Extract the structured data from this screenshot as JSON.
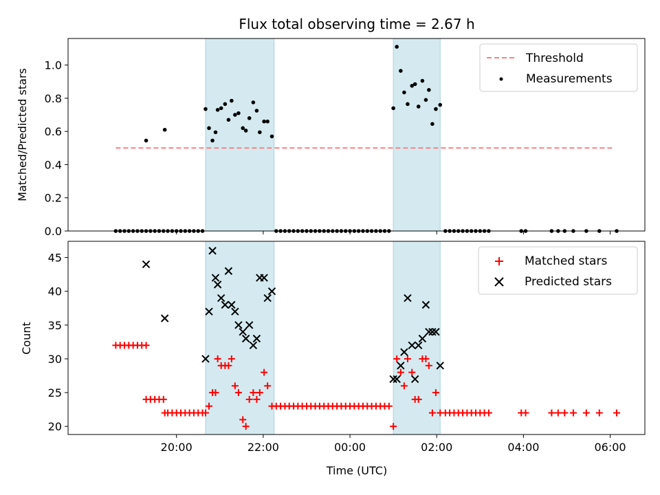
{
  "chart_data": [
    {
      "type": "scatter",
      "title": "Flux total observing time = 2.67 h",
      "ylabel": "Matched/Predicted stars",
      "xlabel": "",
      "x_unit": "hours since 18:00 UTC",
      "xlim": [
        -0.5,
        12.8
      ],
      "ylim": [
        0,
        1.16
      ],
      "yticks": [
        0.0,
        0.2,
        0.4,
        0.6,
        0.8,
        1.0
      ],
      "ytick_labels": [
        "0.0",
        "0.2",
        "0.4",
        "0.6",
        "0.8",
        "1.0"
      ],
      "xticks": [
        2,
        4,
        6,
        8,
        10,
        12
      ],
      "spans": [
        [
          2.67,
          4.25
        ],
        [
          7.0,
          8.08
        ]
      ],
      "span_color": "#d4eaf0",
      "legend": {
        "placement": "top-right",
        "entries": [
          "Threshold",
          "Measurements"
        ]
      },
      "threshold": {
        "name": "Threshold",
        "y": 0.5,
        "x_start": 0.6,
        "x_end": 12.1,
        "color": "#ff7f7f"
      },
      "measurements": {
        "name": "Measurements",
        "color": "#000000",
        "points": [
          [
            0.6,
            0
          ],
          [
            0.7,
            0
          ],
          [
            0.8,
            0
          ],
          [
            0.9,
            0
          ],
          [
            1.0,
            0
          ],
          [
            1.1,
            0
          ],
          [
            1.2,
            0
          ],
          [
            1.3,
            0
          ],
          [
            1.3,
            0.545
          ],
          [
            1.4,
            0
          ],
          [
            1.5,
            0
          ],
          [
            1.6,
            0
          ],
          [
            1.7,
            0
          ],
          [
            1.73,
            0.61
          ],
          [
            1.8,
            0
          ],
          [
            1.9,
            0
          ],
          [
            2.0,
            0
          ],
          [
            2.1,
            0
          ],
          [
            2.2,
            0
          ],
          [
            2.3,
            0
          ],
          [
            2.4,
            0
          ],
          [
            2.5,
            0
          ],
          [
            2.6,
            0
          ],
          [
            2.67,
            0.735
          ],
          [
            2.75,
            0.62
          ],
          [
            2.83,
            0.545
          ],
          [
            2.9,
            0.595
          ],
          [
            2.95,
            0.73
          ],
          [
            3.03,
            0.74
          ],
          [
            3.12,
            0.765
          ],
          [
            3.2,
            0.67
          ],
          [
            3.27,
            0.785
          ],
          [
            3.35,
            0.7
          ],
          [
            3.43,
            0.71
          ],
          [
            3.53,
            0.62
          ],
          [
            3.6,
            0.605
          ],
          [
            3.68,
            0.68
          ],
          [
            3.77,
            0.775
          ],
          [
            3.85,
            0.725
          ],
          [
            3.92,
            0.595
          ],
          [
            4.02,
            0.66
          ],
          [
            4.1,
            0.66
          ],
          [
            4.2,
            0.57
          ],
          [
            4.3,
            0
          ],
          [
            4.4,
            0
          ],
          [
            4.5,
            0
          ],
          [
            4.6,
            0
          ],
          [
            4.7,
            0
          ],
          [
            4.8,
            0
          ],
          [
            4.9,
            0
          ],
          [
            5.0,
            0
          ],
          [
            5.1,
            0
          ],
          [
            5.2,
            0
          ],
          [
            5.3,
            0
          ],
          [
            5.4,
            0
          ],
          [
            5.5,
            0
          ],
          [
            5.6,
            0
          ],
          [
            5.7,
            0
          ],
          [
            5.8,
            0
          ],
          [
            5.9,
            0
          ],
          [
            6.0,
            0
          ],
          [
            6.1,
            0
          ],
          [
            6.2,
            0
          ],
          [
            6.3,
            0
          ],
          [
            6.4,
            0
          ],
          [
            6.5,
            0
          ],
          [
            6.6,
            0
          ],
          [
            6.7,
            0
          ],
          [
            6.8,
            0
          ],
          [
            6.9,
            0
          ],
          [
            7.0,
            0.74
          ],
          [
            7.08,
            1.11
          ],
          [
            7.17,
            0.965
          ],
          [
            7.25,
            0.835
          ],
          [
            7.33,
            0.765
          ],
          [
            7.43,
            0.875
          ],
          [
            7.5,
            0.885
          ],
          [
            7.58,
            0.75
          ],
          [
            7.67,
            0.905
          ],
          [
            7.75,
            0.79
          ],
          [
            7.82,
            0.85
          ],
          [
            7.9,
            0.645
          ],
          [
            7.98,
            0.735
          ],
          [
            8.08,
            0.76
          ],
          [
            8.2,
            0
          ],
          [
            8.3,
            0
          ],
          [
            8.4,
            0
          ],
          [
            8.5,
            0
          ],
          [
            8.6,
            0
          ],
          [
            8.7,
            0
          ],
          [
            8.8,
            0
          ],
          [
            8.9,
            0
          ],
          [
            9.0,
            0
          ],
          [
            9.1,
            0
          ],
          [
            9.2,
            0
          ],
          [
            9.95,
            0
          ],
          [
            10.05,
            0
          ],
          [
            10.65,
            0
          ],
          [
            10.8,
            0
          ],
          [
            10.95,
            0
          ],
          [
            11.15,
            0
          ],
          [
            11.45,
            0
          ],
          [
            11.75,
            0
          ],
          [
            12.15,
            0
          ]
        ]
      }
    },
    {
      "type": "scatter",
      "title": "",
      "ylabel": "Count",
      "xlabel": "Time (UTC)",
      "x_unit": "hours since 18:00 UTC",
      "xlim": [
        -0.5,
        12.8
      ],
      "ylim": [
        18.8,
        47.4
      ],
      "yticks": [
        20,
        25,
        30,
        35,
        40,
        45
      ],
      "ytick_labels": [
        "20",
        "25",
        "30",
        "35",
        "40",
        "45"
      ],
      "xticks": [
        2,
        4,
        6,
        8,
        10,
        12
      ],
      "xtick_labels": [
        "20:00",
        "22:00",
        "00:00",
        "02:00",
        "04:00",
        "06:00"
      ],
      "spans": [
        [
          2.67,
          4.25
        ],
        [
          7.0,
          8.08
        ]
      ],
      "span_color": "#d4eaf0",
      "legend": {
        "placement": "top-right",
        "entries": [
          "Matched stars",
          "Predicted stars"
        ]
      },
      "series": [
        {
          "name": "Matched stars",
          "marker": "plus",
          "color": "#ff0000",
          "points": [
            [
              0.6,
              32
            ],
            [
              0.7,
              32
            ],
            [
              0.8,
              32
            ],
            [
              0.9,
              32
            ],
            [
              1.0,
              32
            ],
            [
              1.1,
              32
            ],
            [
              1.2,
              32
            ],
            [
              1.3,
              32
            ],
            [
              1.3,
              24
            ],
            [
              1.4,
              24
            ],
            [
              1.5,
              24
            ],
            [
              1.6,
              24
            ],
            [
              1.7,
              24
            ],
            [
              1.73,
              22
            ],
            [
              1.8,
              22
            ],
            [
              1.9,
              22
            ],
            [
              2.0,
              22
            ],
            [
              2.1,
              22
            ],
            [
              2.2,
              22
            ],
            [
              2.3,
              22
            ],
            [
              2.4,
              22
            ],
            [
              2.5,
              22
            ],
            [
              2.6,
              22
            ],
            [
              2.67,
              22
            ],
            [
              2.75,
              23
            ],
            [
              2.83,
              25
            ],
            [
              2.9,
              25
            ],
            [
              2.95,
              30
            ],
            [
              3.03,
              29
            ],
            [
              3.12,
              29
            ],
            [
              3.2,
              29
            ],
            [
              3.27,
              30
            ],
            [
              3.35,
              26
            ],
            [
              3.43,
              25
            ],
            [
              3.53,
              21
            ],
            [
              3.6,
              20
            ],
            [
              3.68,
              24
            ],
            [
              3.77,
              25
            ],
            [
              3.85,
              24
            ],
            [
              3.92,
              25
            ],
            [
              4.02,
              28
            ],
            [
              4.1,
              26
            ],
            [
              4.2,
              23
            ],
            [
              4.3,
              23
            ],
            [
              4.4,
              23
            ],
            [
              4.5,
              23
            ],
            [
              4.6,
              23
            ],
            [
              4.7,
              23
            ],
            [
              4.8,
              23
            ],
            [
              4.9,
              23
            ],
            [
              5.0,
              23
            ],
            [
              5.1,
              23
            ],
            [
              5.2,
              23
            ],
            [
              5.3,
              23
            ],
            [
              5.4,
              23
            ],
            [
              5.5,
              23
            ],
            [
              5.6,
              23
            ],
            [
              5.7,
              23
            ],
            [
              5.8,
              23
            ],
            [
              5.9,
              23
            ],
            [
              6.0,
              23
            ],
            [
              6.1,
              23
            ],
            [
              6.2,
              23
            ],
            [
              6.3,
              23
            ],
            [
              6.4,
              23
            ],
            [
              6.5,
              23
            ],
            [
              6.6,
              23
            ],
            [
              6.7,
              23
            ],
            [
              6.8,
              23
            ],
            [
              6.9,
              23
            ],
            [
              7.0,
              20
            ],
            [
              7.08,
              30
            ],
            [
              7.17,
              28
            ],
            [
              7.25,
              26
            ],
            [
              7.33,
              30
            ],
            [
              7.43,
              28
            ],
            [
              7.5,
              24
            ],
            [
              7.58,
              24
            ],
            [
              7.67,
              30
            ],
            [
              7.75,
              30
            ],
            [
              7.82,
              29
            ],
            [
              7.9,
              22
            ],
            [
              7.98,
              25
            ],
            [
              8.08,
              22
            ],
            [
              8.2,
              22
            ],
            [
              8.3,
              22
            ],
            [
              8.4,
              22
            ],
            [
              8.5,
              22
            ],
            [
              8.6,
              22
            ],
            [
              8.7,
              22
            ],
            [
              8.8,
              22
            ],
            [
              8.9,
              22
            ],
            [
              9.0,
              22
            ],
            [
              9.1,
              22
            ],
            [
              9.2,
              22
            ],
            [
              9.95,
              22
            ],
            [
              10.05,
              22
            ],
            [
              10.65,
              22
            ],
            [
              10.8,
              22
            ],
            [
              10.95,
              22
            ],
            [
              11.15,
              22
            ],
            [
              11.45,
              22
            ],
            [
              11.75,
              22
            ],
            [
              12.15,
              22
            ]
          ]
        },
        {
          "name": "Predicted stars",
          "marker": "x",
          "color": "#000000",
          "points": [
            [
              1.3,
              44
            ],
            [
              1.73,
              36
            ],
            [
              2.67,
              30
            ],
            [
              2.75,
              37
            ],
            [
              2.83,
              46
            ],
            [
              2.9,
              42
            ],
            [
              2.95,
              41
            ],
            [
              3.03,
              39
            ],
            [
              3.12,
              38
            ],
            [
              3.2,
              43
            ],
            [
              3.27,
              38
            ],
            [
              3.35,
              37
            ],
            [
              3.43,
              35
            ],
            [
              3.53,
              34
            ],
            [
              3.6,
              33
            ],
            [
              3.68,
              35
            ],
            [
              3.77,
              32
            ],
            [
              3.85,
              33
            ],
            [
              3.92,
              42
            ],
            [
              4.02,
              42
            ],
            [
              4.1,
              39
            ],
            [
              4.2,
              40
            ],
            [
              7.0,
              27
            ],
            [
              7.08,
              27
            ],
            [
              7.17,
              29
            ],
            [
              7.25,
              31
            ],
            [
              7.33,
              39
            ],
            [
              7.43,
              32
            ],
            [
              7.5,
              27
            ],
            [
              7.58,
              32
            ],
            [
              7.67,
              33
            ],
            [
              7.75,
              38
            ],
            [
              7.82,
              34
            ],
            [
              7.9,
              34
            ],
            [
              7.98,
              34
            ],
            [
              8.08,
              29
            ]
          ]
        }
      ]
    }
  ]
}
